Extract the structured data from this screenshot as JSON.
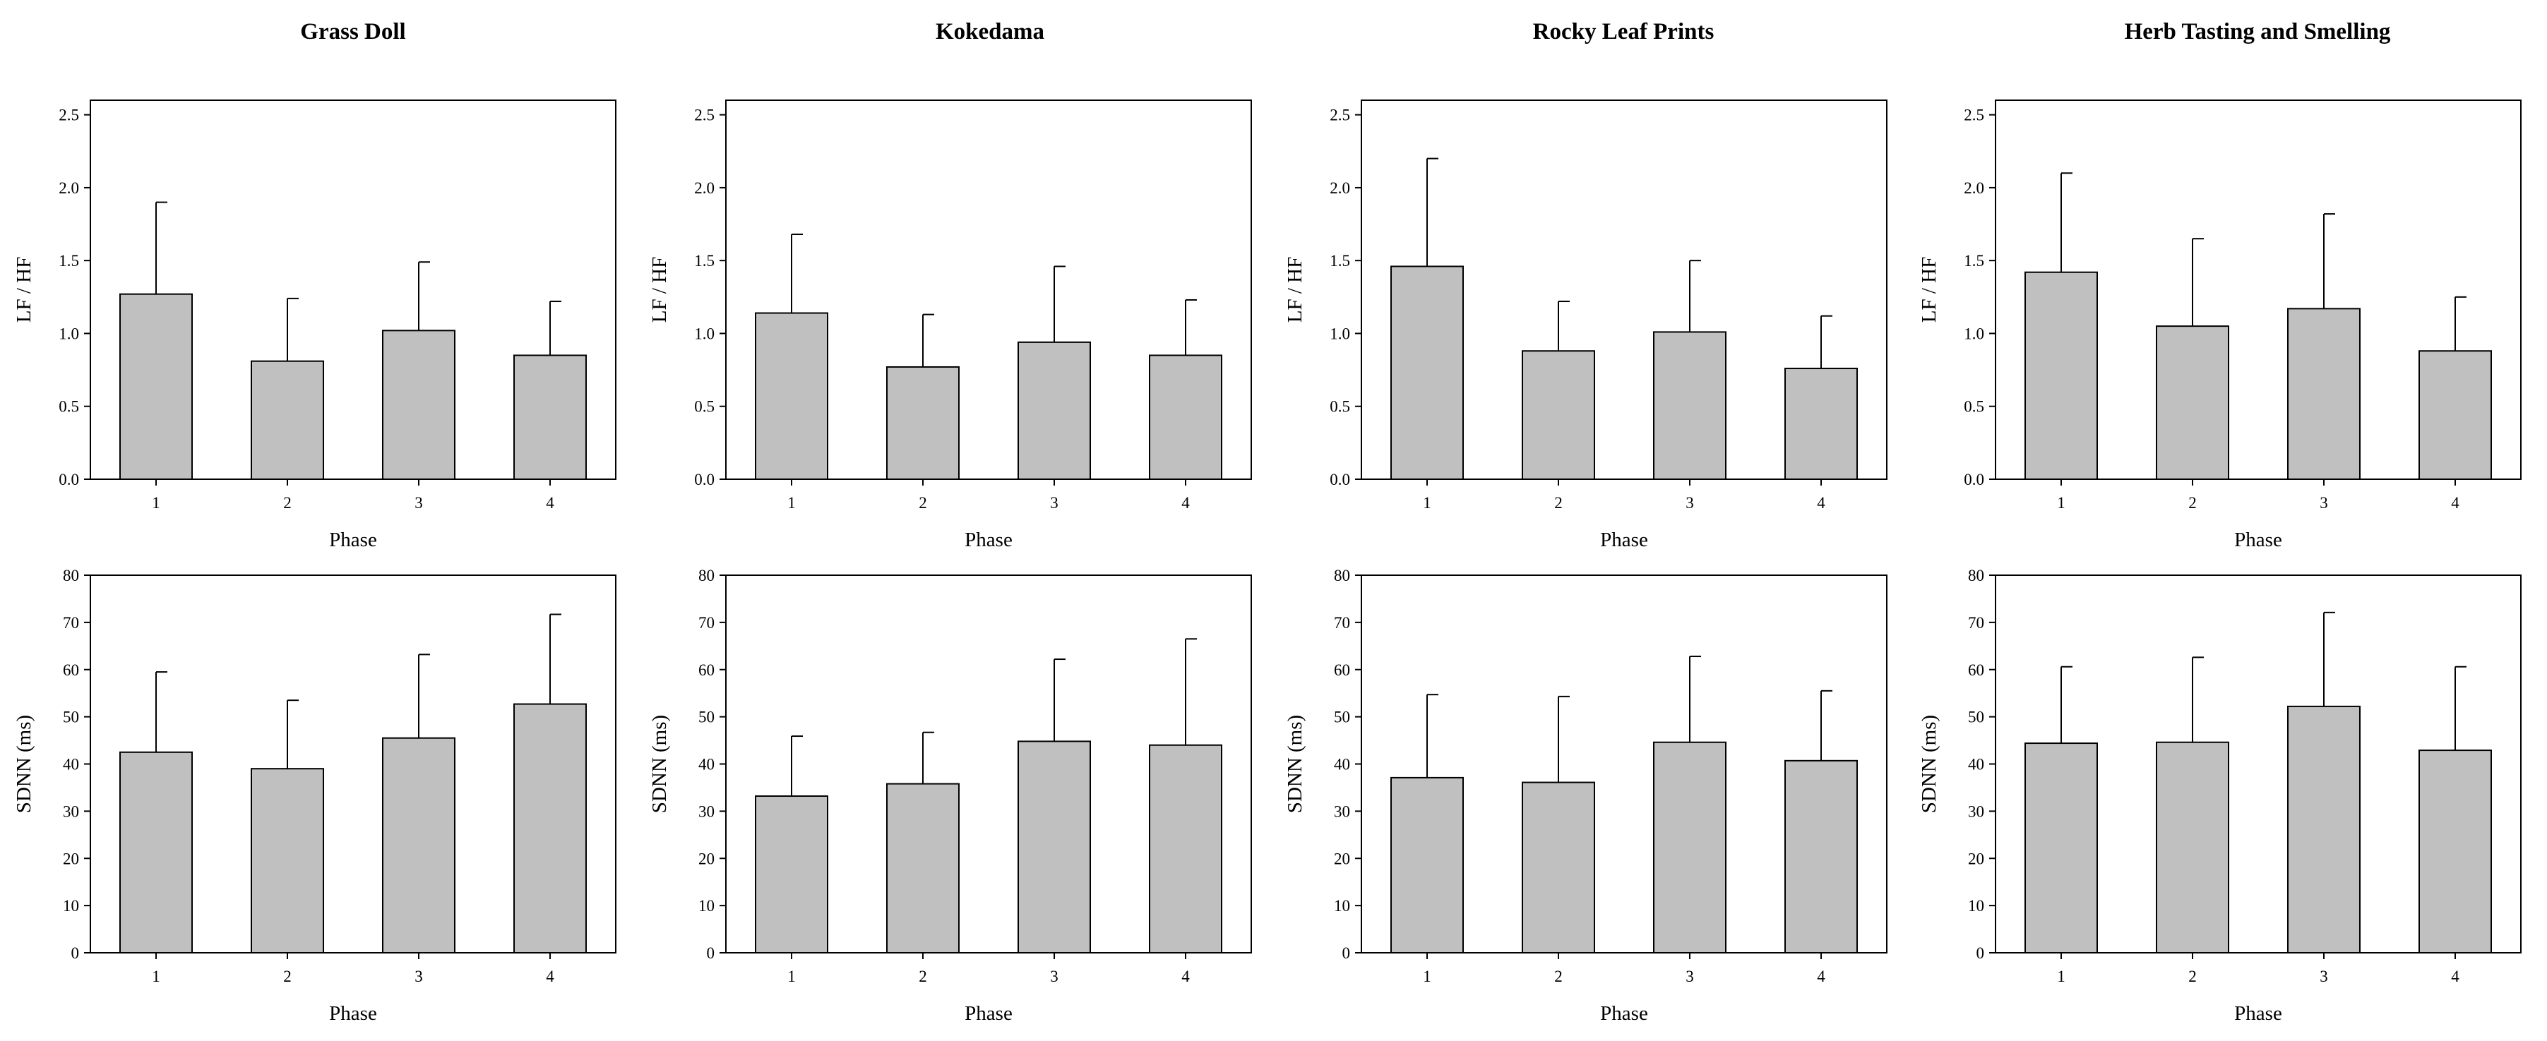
{
  "figure": {
    "columns": [
      {
        "title": "Grass Doll"
      },
      {
        "title": "Kokedama"
      },
      {
        "title": "Rocky Leaf Prints"
      },
      {
        "title": "Herb Tasting and Smelling"
      }
    ]
  },
  "chart_data": [
    {
      "type": "bar",
      "title": "Grass Doll",
      "row": "lfhf",
      "categories": [
        "1",
        "2",
        "3",
        "4"
      ],
      "values": [
        1.27,
        0.81,
        1.02,
        0.85
      ],
      "error_upper": [
        1.9,
        1.24,
        1.49,
        1.22
      ],
      "xlabel": "Phase",
      "ylabel": "LF / HF",
      "ylim": [
        0,
        2.6
      ],
      "yticks": [
        "0.0",
        "0.5",
        "1.0",
        "1.5",
        "2.0",
        "2.5"
      ]
    },
    {
      "type": "bar",
      "title": "Kokedama",
      "row": "lfhf",
      "categories": [
        "1",
        "2",
        "3",
        "4"
      ],
      "values": [
        1.14,
        0.77,
        0.94,
        0.85
      ],
      "error_upper": [
        1.68,
        1.13,
        1.46,
        1.23
      ],
      "xlabel": "Phase",
      "ylabel": "LF / HF",
      "ylim": [
        0,
        2.6
      ],
      "yticks": [
        "0.0",
        "0.5",
        "1.0",
        "1.5",
        "2.0",
        "2.5"
      ]
    },
    {
      "type": "bar",
      "title": "Rocky Leaf Prints",
      "row": "lfhf",
      "categories": [
        "1",
        "2",
        "3",
        "4"
      ],
      "values": [
        1.46,
        0.88,
        1.01,
        0.76
      ],
      "error_upper": [
        2.2,
        1.22,
        1.5,
        1.12
      ],
      "xlabel": "Phase",
      "ylabel": "LF / HF",
      "ylim": [
        0,
        2.6
      ],
      "yticks": [
        "0.0",
        "0.5",
        "1.0",
        "1.5",
        "2.0",
        "2.5"
      ]
    },
    {
      "type": "bar",
      "title": "Herb Tasting and Smelling",
      "row": "lfhf",
      "categories": [
        "1",
        "2",
        "3",
        "4"
      ],
      "values": [
        1.42,
        1.05,
        1.17,
        0.88
      ],
      "error_upper": [
        2.1,
        1.65,
        1.82,
        1.25
      ],
      "xlabel": "Phase",
      "ylabel": "LF / HF",
      "ylim": [
        0,
        2.6
      ],
      "yticks": [
        "0.0",
        "0.5",
        "1.0",
        "1.5",
        "2.0",
        "2.5"
      ]
    },
    {
      "type": "bar",
      "title": "Grass Doll",
      "row": "sdnn",
      "categories": [
        "1",
        "2",
        "3",
        "4"
      ],
      "values": [
        42.5,
        39.0,
        45.5,
        52.7
      ],
      "error_upper": [
        59.5,
        53.5,
        63.2,
        71.7
      ],
      "xlabel": "Phase",
      "ylabel": "SDNN (ms)",
      "ylim": [
        0,
        80
      ],
      "yticks": [
        "0",
        "10",
        "20",
        "30",
        "40",
        "50",
        "60",
        "70",
        "80"
      ]
    },
    {
      "type": "bar",
      "title": "Kokedama",
      "row": "sdnn",
      "categories": [
        "1",
        "2",
        "3",
        "4"
      ],
      "values": [
        33.2,
        35.8,
        44.8,
        44.0
      ],
      "error_upper": [
        45.9,
        46.7,
        62.2,
        66.5
      ],
      "xlabel": "Phase",
      "ylabel": "SDNN (ms)",
      "ylim": [
        0,
        80
      ],
      "yticks": [
        "0",
        "10",
        "20",
        "30",
        "40",
        "50",
        "60",
        "70",
        "80"
      ]
    },
    {
      "type": "bar",
      "title": "Rocky Leaf Prints",
      "row": "sdnn",
      "categories": [
        "1",
        "2",
        "3",
        "4"
      ],
      "values": [
        37.1,
        36.1,
        44.6,
        40.7
      ],
      "error_upper": [
        54.7,
        54.3,
        62.8,
        55.5
      ],
      "xlabel": "Phase",
      "ylabel": "SDNN (ms)",
      "ylim": [
        0,
        80
      ],
      "yticks": [
        "0",
        "10",
        "20",
        "30",
        "40",
        "50",
        "60",
        "70",
        "80"
      ]
    },
    {
      "type": "bar",
      "title": "Herb Tasting and Smelling",
      "row": "sdnn",
      "categories": [
        "1",
        "2",
        "3",
        "4"
      ],
      "values": [
        44.4,
        44.6,
        52.2,
        42.9
      ],
      "error_upper": [
        60.6,
        62.6,
        72.1,
        60.6
      ],
      "xlabel": "Phase",
      "ylabel": "SDNN (ms)",
      "ylim": [
        0,
        80
      ],
      "yticks": [
        "0",
        "10",
        "20",
        "30",
        "40",
        "50",
        "60",
        "70",
        "80"
      ]
    }
  ],
  "colors": {
    "bar_fill": "#c0c0c0",
    "stroke": "#000000",
    "background": "#ffffff"
  }
}
